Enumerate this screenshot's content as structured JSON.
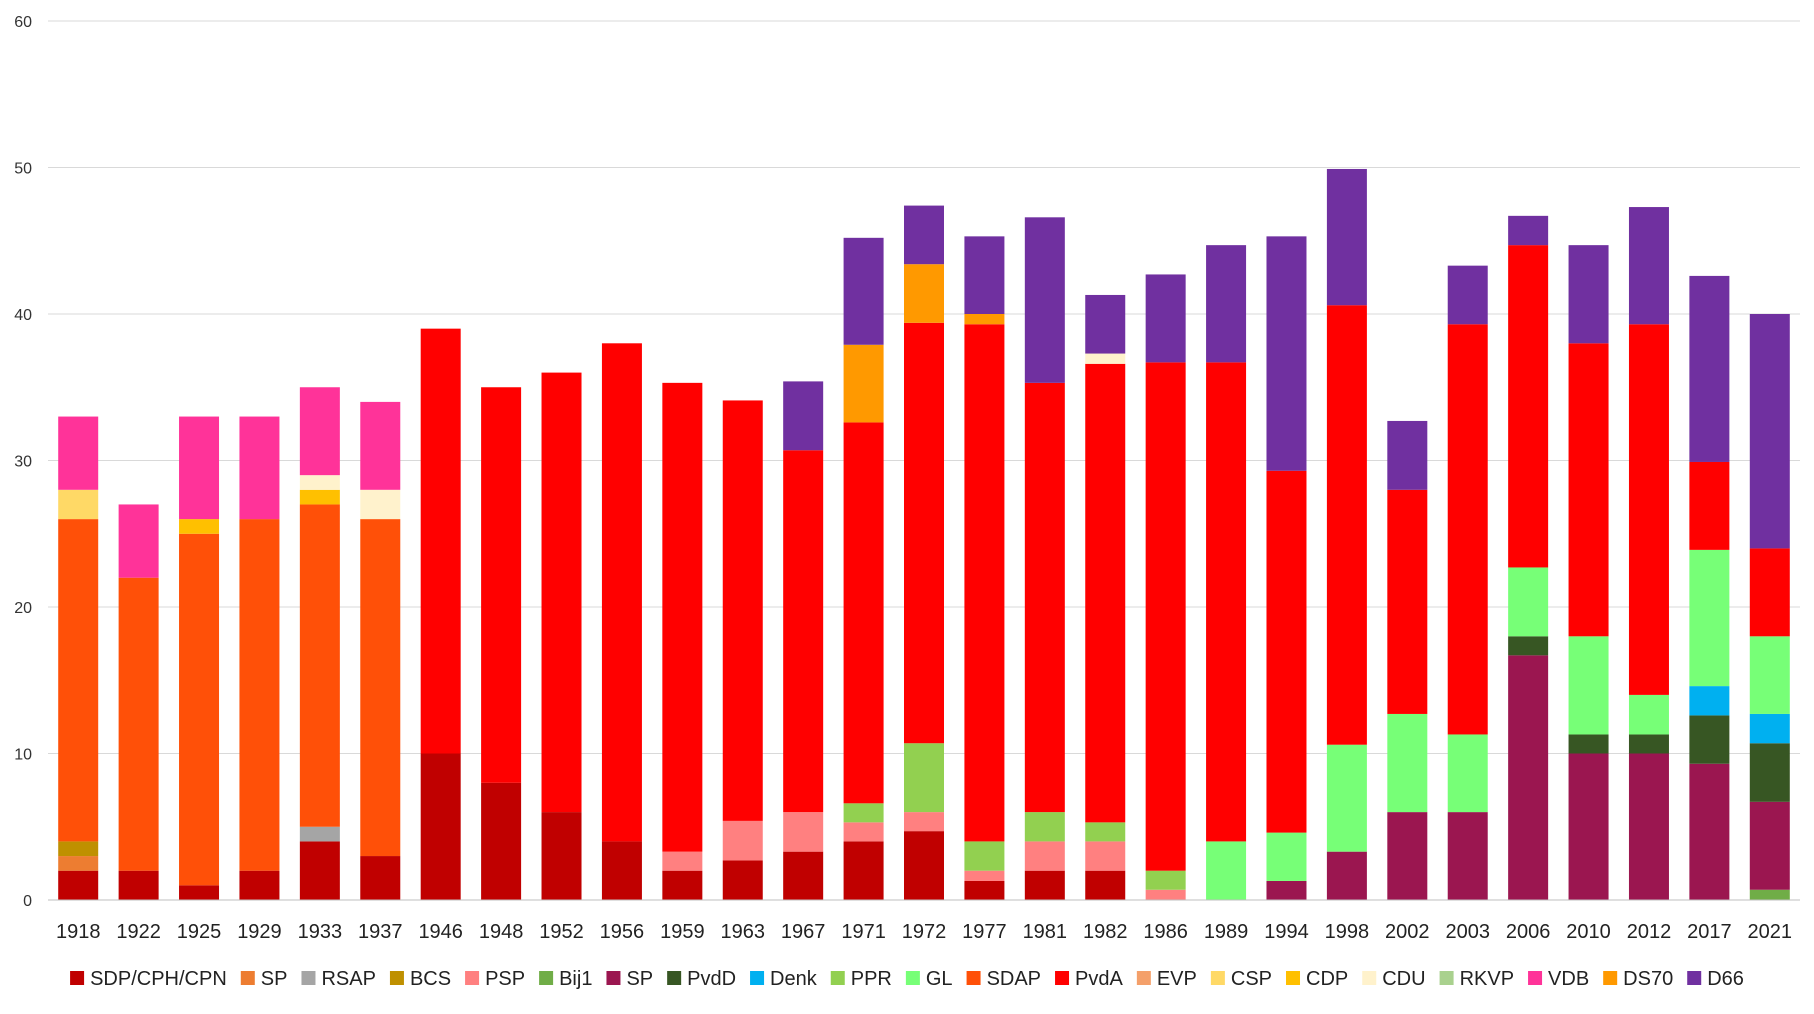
{
  "chart_data": {
    "type": "bar",
    "stacked": true,
    "title": "",
    "xlabel": "",
    "ylabel": "",
    "ylim": [
      0,
      60
    ],
    "yticks": [
      0,
      10,
      20,
      30,
      40,
      50,
      60
    ],
    "grid": true,
    "legend_position": "bottom",
    "categories": [
      "1918",
      "1922",
      "1925",
      "1929",
      "1933",
      "1937",
      "1946",
      "1948",
      "1952",
      "1956",
      "1959",
      "1963",
      "1967",
      "1971",
      "1972",
      "1977",
      "1981",
      "1982",
      "1986",
      "1989",
      "1994",
      "1998",
      "2002",
      "2003",
      "2006",
      "2010",
      "2012",
      "2017",
      "2021"
    ],
    "series": [
      {
        "name": "SDP/CPH/CPN",
        "color": "#C00000",
        "values": [
          2,
          2,
          1,
          2,
          4,
          3,
          10,
          8,
          6,
          4,
          2,
          2.7,
          3.3,
          4,
          4.7,
          1.3,
          2,
          2,
          0,
          0,
          0,
          0,
          0,
          0,
          0,
          0,
          0,
          0,
          0
        ]
      },
      {
        "name": "SP",
        "color": "#ED7D31",
        "values": [
          1,
          0,
          0,
          0,
          0,
          0,
          0,
          0,
          0,
          0,
          0,
          0,
          0,
          0,
          0,
          0,
          0,
          0,
          0,
          0,
          0,
          0,
          0,
          0,
          0,
          0,
          0,
          0,
          0
        ]
      },
      {
        "name": "RSAP",
        "color": "#A5A5A5",
        "values": [
          0,
          0,
          0,
          0,
          1,
          0,
          0,
          0,
          0,
          0,
          0,
          0,
          0,
          0,
          0,
          0,
          0,
          0,
          0,
          0,
          0,
          0,
          0,
          0,
          0,
          0,
          0,
          0,
          0
        ]
      },
      {
        "name": "BCS",
        "color": "#BF9000",
        "values": [
          1,
          0,
          0,
          0,
          0,
          0,
          0,
          0,
          0,
          0,
          0,
          0,
          0,
          0,
          0,
          0,
          0,
          0,
          0,
          0,
          0,
          0,
          0,
          0,
          0,
          0,
          0,
          0,
          0
        ]
      },
      {
        "name": "PSP",
        "color": "#FF8080",
        "values": [
          0,
          0,
          0,
          0,
          0,
          0,
          0,
          0,
          0,
          0,
          1.3,
          2.7,
          2.7,
          1.3,
          1.3,
          0.7,
          2,
          2,
          0.7,
          0,
          0,
          0,
          0,
          0,
          0,
          0,
          0,
          0,
          0
        ]
      },
      {
        "name": "Bij1",
        "color": "#70AD47",
        "values": [
          0,
          0,
          0,
          0,
          0,
          0,
          0,
          0,
          0,
          0,
          0,
          0,
          0,
          0,
          0,
          0,
          0,
          0,
          0,
          0,
          0,
          0,
          0,
          0,
          0,
          0,
          0,
          0,
          0.7
        ]
      },
      {
        "name": "SP",
        "color": "#9B1650",
        "values": [
          0,
          0,
          0,
          0,
          0,
          0,
          0,
          0,
          0,
          0,
          0,
          0,
          0,
          0,
          0,
          0,
          0,
          0,
          0,
          0,
          1.3,
          3.3,
          6,
          6,
          16.7,
          10,
          10,
          9.3,
          6
        ]
      },
      {
        "name": "PvdD",
        "color": "#375623",
        "values": [
          0,
          0,
          0,
          0,
          0,
          0,
          0,
          0,
          0,
          0,
          0,
          0,
          0,
          0,
          0,
          0,
          0,
          0,
          0,
          0,
          0,
          0,
          0,
          0,
          1.3,
          1.3,
          1.3,
          3.3,
          4
        ]
      },
      {
        "name": "Denk",
        "color": "#00B0F0",
        "values": [
          0,
          0,
          0,
          0,
          0,
          0,
          0,
          0,
          0,
          0,
          0,
          0,
          0,
          0,
          0,
          0,
          0,
          0,
          0,
          0,
          0,
          0,
          0,
          0,
          0,
          0,
          0,
          2,
          2
        ]
      },
      {
        "name": "PPR",
        "color": "#92D050",
        "values": [
          0,
          0,
          0,
          0,
          0,
          0,
          0,
          0,
          0,
          0,
          0,
          0,
          0,
          1.3,
          4.7,
          2,
          2,
          1.3,
          1.3,
          0,
          0,
          0,
          0,
          0,
          0,
          0,
          0,
          0,
          0
        ]
      },
      {
        "name": "GL",
        "color": "#77FF77",
        "values": [
          0,
          0,
          0,
          0,
          0,
          0,
          0,
          0,
          0,
          0,
          0,
          0,
          0,
          0,
          0,
          0,
          0,
          0,
          0,
          4,
          3.3,
          7.3,
          6.7,
          5.3,
          4.7,
          6.7,
          2.7,
          9.3,
          5.3
        ]
      },
      {
        "name": "SDAP",
        "color": "#FF5008",
        "values": [
          22,
          20,
          24,
          24,
          22,
          23,
          0,
          0,
          0,
          0,
          0,
          0,
          0,
          0,
          0,
          0,
          0,
          0,
          0,
          0,
          0,
          0,
          0,
          0,
          0,
          0,
          0,
          0,
          0
        ]
      },
      {
        "name": "PvdA",
        "color": "#FF0000",
        "values": [
          0,
          0,
          0,
          0,
          0,
          0,
          29,
          27,
          30,
          34,
          32,
          28.7,
          24.7,
          26,
          28.7,
          35.3,
          29.3,
          31.3,
          34.7,
          32.7,
          24.7,
          30,
          15.3,
          28,
          22,
          20,
          25.3,
          6,
          6
        ]
      },
      {
        "name": "EVP",
        "color": "#F4A06A",
        "values": [
          0,
          0,
          0,
          0,
          0,
          0,
          0,
          0,
          0,
          0,
          0,
          0,
          0,
          0,
          0,
          0,
          0,
          0,
          0,
          0,
          0,
          0,
          0,
          0,
          0,
          0,
          0,
          0,
          0
        ]
      },
      {
        "name": "CSP",
        "color": "#FFD966",
        "values": [
          2,
          0,
          0,
          0,
          0,
          0,
          0,
          0,
          0,
          0,
          0,
          0,
          0,
          0,
          0,
          0,
          0,
          0,
          0,
          0,
          0,
          0,
          0,
          0,
          0,
          0,
          0,
          0,
          0
        ]
      },
      {
        "name": "CDP",
        "color": "#FFC000",
        "values": [
          0,
          0,
          1,
          0,
          1,
          0,
          0,
          0,
          0,
          0,
          0,
          0,
          0,
          0,
          0,
          0,
          0,
          0,
          0,
          0,
          0,
          0,
          0,
          0,
          0,
          0,
          0,
          0,
          0
        ]
      },
      {
        "name": "CDU",
        "color": "#FFF2CC",
        "values": [
          0,
          0,
          0,
          0,
          1,
          2,
          0,
          0,
          0,
          0,
          0,
          0,
          0,
          0,
          0,
          0,
          0,
          0.7,
          0,
          0,
          0,
          0,
          0,
          0,
          0,
          0,
          0,
          0,
          0
        ]
      },
      {
        "name": "RKVP",
        "color": "#A9D18E",
        "values": [
          0,
          0,
          0,
          0,
          0,
          0,
          0,
          0,
          0,
          0,
          0,
          0,
          0,
          0,
          0,
          0,
          0,
          0,
          0,
          0,
          0,
          0,
          0,
          0,
          0,
          0,
          0,
          0,
          0
        ]
      },
      {
        "name": "VDB",
        "color": "#FF3399",
        "values": [
          5,
          5,
          7,
          7,
          6,
          6,
          0,
          0,
          0,
          0,
          0,
          0,
          0,
          0,
          0,
          0,
          0,
          0,
          0,
          0,
          0,
          0,
          0,
          0,
          0,
          0,
          0,
          0,
          0
        ]
      },
      {
        "name": "DS70",
        "color": "#FF9900",
        "values": [
          0,
          0,
          0,
          0,
          0,
          0,
          0,
          0,
          0,
          0,
          0,
          0,
          0,
          5.3,
          4,
          0.7,
          0,
          0,
          0,
          0,
          0,
          0,
          0,
          0,
          0,
          0,
          0,
          0,
          0
        ]
      },
      {
        "name": "D66",
        "color": "#7030A0",
        "values": [
          0,
          0,
          0,
          0,
          0,
          0,
          0,
          0,
          0,
          0,
          0,
          0,
          4.7,
          7.3,
          4,
          5.3,
          11.3,
          4,
          6,
          8,
          16,
          9.3,
          4.7,
          4,
          2,
          6.7,
          8,
          12.7,
          16
        ]
      }
    ]
  }
}
